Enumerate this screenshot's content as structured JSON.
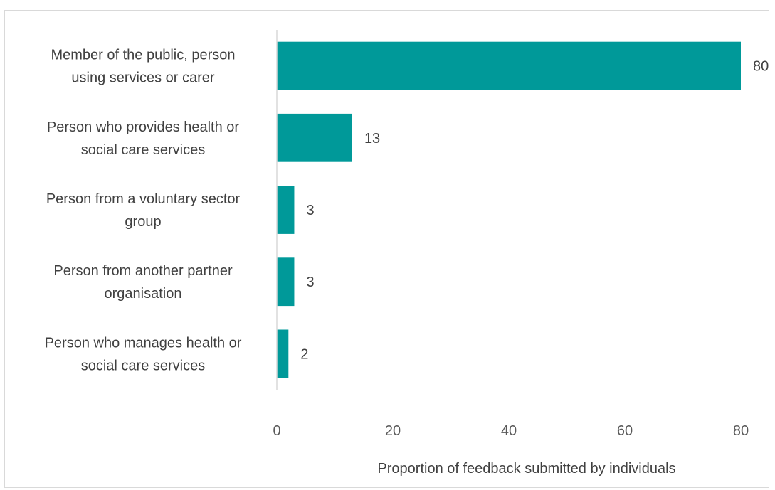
{
  "chart_data": {
    "type": "bar",
    "orientation": "horizontal",
    "categories": [
      "Member of the public, person using services or carer",
      "Person who provides health or social care services",
      "Person from a voluntary sector group",
      "Person from another partner organisation",
      "Person who manages health or social care services"
    ],
    "category_lines": [
      [
        "Member of the public, person",
        "using services or carer"
      ],
      [
        "Person who provides health or",
        "social care services"
      ],
      [
        "Person from a voluntary sector",
        "group"
      ],
      [
        "Person from another partner",
        "organisation"
      ],
      [
        "Person who manages health or",
        "social care services"
      ]
    ],
    "values": [
      80,
      13,
      3,
      3,
      2
    ],
    "data_labels": [
      "80",
      "13",
      "3",
      "3",
      "2"
    ],
    "xlabel": "Proportion of feedback submitted by individuals",
    "ylabel": "",
    "xlim": [
      0,
      80
    ],
    "x_ticks": [
      "0",
      "20",
      "40",
      "60",
      "80"
    ],
    "grid": false,
    "bar_color": "#009999"
  }
}
